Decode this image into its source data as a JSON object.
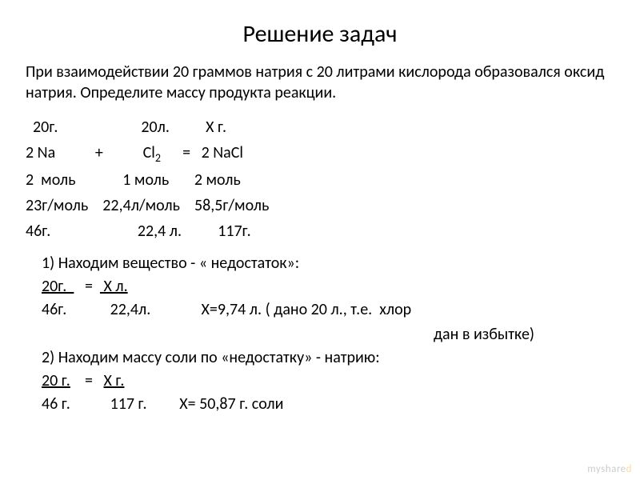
{
  "title": "Решение задач",
  "problem": "При взаимодействии  20 граммов  натрия с 20 литрами кислорода образовался оксид натрия. Определите массу продукта реакции.",
  "row_given": "  20г.                       20л.          Х г.",
  "eq_left": "2 Na           +           Cl",
  "eq_sub": "2",
  "eq_right": "      =   2 NaCl",
  "row_mol": "2  моль             1 моль       2 моль",
  "row_mm": "23г/моль    22,4л/моль    58,5г/моль",
  "row_mass": "46г.                        22,4 л.          117г.",
  "step1_header": "1) Находим вещество - « недостаток»:",
  "step1_line1_a": "20г.  ",
  "step1_line1_b": "   =  ",
  "step1_line1_c": " Х л.",
  "step1_line2": "46г.            22,4л.              Х=9,74 л. ( дано 20 л., т.е.  хлор",
  "step1_excess": "дан в избытке)",
  "step2_header": "2) Находим массу соли по «недостатку» -  натрию:",
  "step2_line1_a": "20 г.",
  "step2_line1_b": "    =   ",
  "step2_line1_c": "Х г.",
  "step2_line2": "46 г.           117 г.         Х= 50,87 г. соли",
  "watermark_left": "myshare",
  "watermark_right": "d",
  "colors": {
    "text": "#000000",
    "background": "#ffffff",
    "watermark_gray": "#cccccc",
    "watermark_accent": "#ffd89b"
  },
  "fontsize_title": 30,
  "fontsize_body": 20
}
